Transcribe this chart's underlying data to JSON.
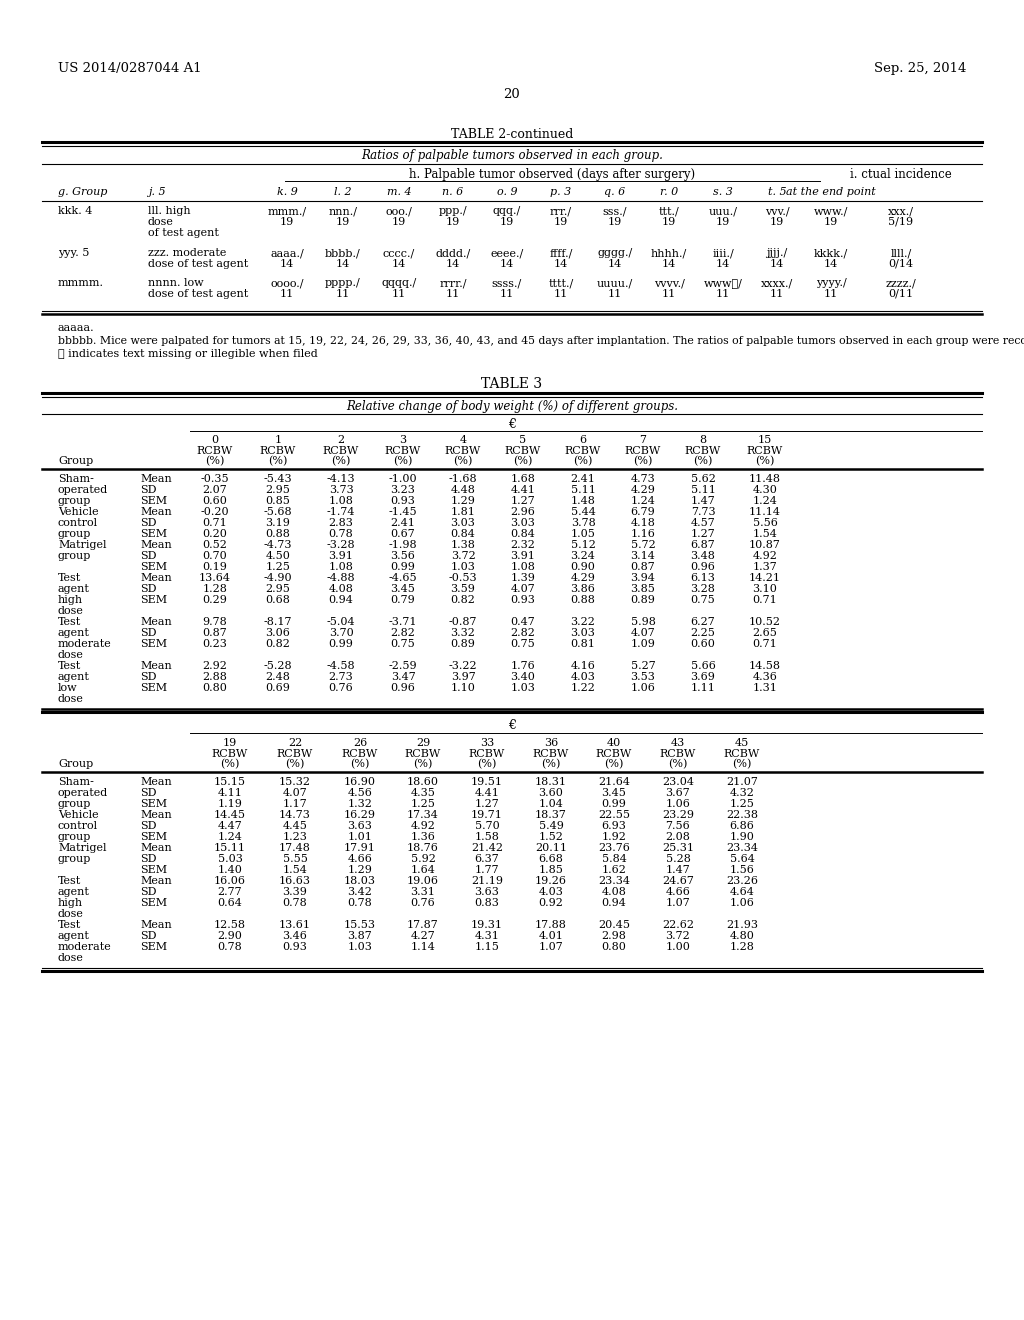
{
  "header_left": "US 2014/0287044 A1",
  "header_right": "Sep. 25, 2014",
  "page_number": "20",
  "table2_title": "TABLE 2-continued",
  "table2_subtitle": "Ratios of palpable tumors observed in each group.",
  "table2_col_header_h": "h. Palpable tumor observed (days after surgery)",
  "table2_col_header_i": "i. ctual incidence",
  "table2_subheaders": [
    "g. Group",
    "j. 5",
    "k. 9",
    "l. 2",
    "m. 4",
    "n. 6",
    "o. 9",
    "p. 3",
    "q. 6",
    "r. 0",
    "s. 3",
    "t. 5",
    "at the end point"
  ],
  "table2_rows": [
    [
      "kkk. 4",
      "lll. high\ndose\nof test agent",
      "mmm./\n19",
      "nnn./\n19",
      "ooo./\n19",
      "ppp./\n19",
      "qqq./\n19",
      "rrr./\n19",
      "sss./\n19",
      "ttt./\n19",
      "uuu./\n19",
      "vvv./\n19",
      "www./\n19",
      "xxx./\n5/19"
    ],
    [
      "yyy. 5",
      "zzz. moderate\ndose of test agent",
      "aaaa./\n14",
      "bbbb./\n14",
      "cccc./\n14",
      "dddd./\n14",
      "eeee./\n14",
      "ffff./\n14",
      "gggg./\n14",
      "hhhh./\n14",
      "iiii./\n14",
      "jjjj./\n14",
      "kkkk./\n14",
      "llll./\n0/14"
    ],
    [
      "mmmm.",
      "nnnn. low\ndose of test agent",
      "oooo./\n11",
      "pppp./\n11",
      "qqqq./\n11",
      "rrrr./\n11",
      "ssss./\n11",
      "tttt./\n11",
      "uuuu./\n11",
      "vvvv./\n11",
      "wwwⓘ/\n11",
      "xxxx./\n11",
      "yyyy./\n11",
      "zzzz./\n0/11"
    ]
  ],
  "footnote1": "aaaaa.",
  "footnote2": "bbbbb. Mice were palpated for tumors at 15, 19, 22, 24, 26, 29, 33, 36, 40, 43, and 45 days after implantation. The ratios of palpable tumors observed in each group were recorded.",
  "footnote3": "ⓘ indicates text missing or illegible when filed",
  "table3_title": "TABLE 3",
  "table3_subtitle": "Relative change of body weight (%) of different groups.",
  "table3_section1_label": "€",
  "table3_cols1": [
    "0",
    "1",
    "2",
    "3",
    "4",
    "5",
    "6",
    "7",
    "8",
    "15"
  ],
  "table3_group_col": "Group",
  "table3_rows1": [
    [
      "Sham-\noperated\ngroup",
      "Mean",
      "-0.35",
      "-5.43",
      "-4.13",
      "-1.00",
      "-1.68",
      "1.68",
      "2.41",
      "4.73",
      "5.62",
      "11.48"
    ],
    [
      "",
      "SD",
      "2.07",
      "2.95",
      "3.73",
      "3.23",
      "4.48",
      "4.41",
      "5.11",
      "4.29",
      "5.11",
      "4.30"
    ],
    [
      "",
      "SEM",
      "0.60",
      "0.85",
      "1.08",
      "0.93",
      "1.29",
      "1.27",
      "1.48",
      "1.24",
      "1.47",
      "1.24"
    ],
    [
      "Vehicle\ncontrol\ngroup",
      "Mean",
      "-0.20",
      "-5.68",
      "-1.74",
      "-1.45",
      "1.81",
      "2.96",
      "5.44",
      "6.79",
      "7.73",
      "11.14"
    ],
    [
      "",
      "SD",
      "0.71",
      "3.19",
      "2.83",
      "2.41",
      "3.03",
      "3.03",
      "3.78",
      "4.18",
      "4.57",
      "5.56"
    ],
    [
      "",
      "SEM",
      "0.20",
      "0.88",
      "0.78",
      "0.67",
      "0.84",
      "0.84",
      "1.05",
      "1.16",
      "1.27",
      "1.54"
    ],
    [
      "Matrigel\ngroup",
      "Mean",
      "0.52",
      "-4.73",
      "-3.28",
      "-1.98",
      "1.38",
      "2.32",
      "5.12",
      "5.72",
      "6.87",
      "10.87"
    ],
    [
      "",
      "SD",
      "0.70",
      "4.50",
      "3.91",
      "3.56",
      "3.72",
      "3.91",
      "3.24",
      "3.14",
      "3.48",
      "4.92"
    ],
    [
      "",
      "SEM",
      "0.19",
      "1.25",
      "1.08",
      "0.99",
      "1.03",
      "1.08",
      "0.90",
      "0.87",
      "0.96",
      "1.37"
    ],
    [
      "Test\nagent\nhigh\ndose",
      "Mean",
      "13.64",
      "-4.90",
      "-4.88",
      "-4.65",
      "-0.53",
      "1.39",
      "4.29",
      "3.94",
      "6.13",
      "14.21"
    ],
    [
      "",
      "SD",
      "1.28",
      "2.95",
      "4.08",
      "3.45",
      "3.59",
      "4.07",
      "3.86",
      "3.85",
      "3.28",
      "3.10"
    ],
    [
      "",
      "SEM",
      "0.29",
      "0.68",
      "0.94",
      "0.79",
      "0.82",
      "0.93",
      "0.88",
      "0.89",
      "0.75",
      "0.71"
    ],
    [
      "Test\nagent\nmoderate\ndose",
      "Mean",
      "9.78",
      "-8.17",
      "-5.04",
      "-3.71",
      "-0.87",
      "0.47",
      "3.22",
      "5.98",
      "6.27",
      "10.52"
    ],
    [
      "",
      "SD",
      "0.87",
      "3.06",
      "3.70",
      "2.82",
      "3.32",
      "2.82",
      "3.03",
      "4.07",
      "2.25",
      "2.65"
    ],
    [
      "",
      "SEM",
      "0.23",
      "0.82",
      "0.99",
      "0.75",
      "0.89",
      "0.75",
      "0.81",
      "1.09",
      "0.60",
      "0.71"
    ],
    [
      "Test\nagent\nlow\ndose",
      "Mean",
      "2.92",
      "-5.28",
      "-4.58",
      "-2.59",
      "-3.22",
      "1.76",
      "4.16",
      "5.27",
      "5.66",
      "14.58"
    ],
    [
      "",
      "SD",
      "2.88",
      "2.48",
      "2.73",
      "3.47",
      "3.97",
      "3.40",
      "4.03",
      "3.53",
      "3.69",
      "4.36"
    ],
    [
      "",
      "SEM",
      "0.80",
      "0.69",
      "0.76",
      "0.96",
      "1.10",
      "1.03",
      "1.22",
      "1.06",
      "1.11",
      "1.31"
    ]
  ],
  "table3_section2_label": "€",
  "table3_cols2": [
    "19",
    "22",
    "26",
    "29",
    "33",
    "36",
    "40",
    "43",
    "45"
  ],
  "table3_rows2": [
    [
      "Sham-\noperated\ngroup",
      "Mean",
      "15.15",
      "15.32",
      "16.90",
      "18.60",
      "19.51",
      "18.31",
      "21.64",
      "23.04",
      "21.07"
    ],
    [
      "",
      "SD",
      "4.11",
      "4.07",
      "4.56",
      "4.35",
      "4.41",
      "3.60",
      "3.45",
      "3.67",
      "4.32"
    ],
    [
      "",
      "SEM",
      "1.19",
      "1.17",
      "1.32",
      "1.25",
      "1.27",
      "1.04",
      "0.99",
      "1.06",
      "1.25"
    ],
    [
      "Vehicle\ncontrol\ngroup",
      "Mean",
      "14.45",
      "14.73",
      "16.29",
      "17.34",
      "19.71",
      "18.37",
      "22.55",
      "23.29",
      "22.38"
    ],
    [
      "",
      "SD",
      "4.47",
      "4.45",
      "3.63",
      "4.92",
      "5.70",
      "5.49",
      "6.93",
      "7.56",
      "6.86"
    ],
    [
      "",
      "SEM",
      "1.24",
      "1.23",
      "1.01",
      "1.36",
      "1.58",
      "1.52",
      "1.92",
      "2.08",
      "1.90"
    ],
    [
      "Matrigel\ngroup",
      "Mean",
      "15.11",
      "17.48",
      "17.91",
      "18.76",
      "21.42",
      "20.11",
      "23.76",
      "25.31",
      "23.34"
    ],
    [
      "",
      "SD",
      "5.03",
      "5.55",
      "4.66",
      "5.92",
      "6.37",
      "6.68",
      "5.84",
      "5.28",
      "5.64"
    ],
    [
      "",
      "SEM",
      "1.40",
      "1.54",
      "1.29",
      "1.64",
      "1.77",
      "1.85",
      "1.62",
      "1.47",
      "1.56"
    ],
    [
      "Test\nagent\nhigh\ndose",
      "Mean",
      "16.06",
      "16.63",
      "18.03",
      "19.06",
      "21.19",
      "19.26",
      "23.34",
      "24.67",
      "23.26"
    ],
    [
      "",
      "SD",
      "2.77",
      "3.39",
      "3.42",
      "3.31",
      "3.63",
      "4.03",
      "4.08",
      "4.66",
      "4.64"
    ],
    [
      "",
      "SEM",
      "0.64",
      "0.78",
      "0.78",
      "0.76",
      "0.83",
      "0.92",
      "0.94",
      "1.07",
      "1.06"
    ],
    [
      "Test\nagent\nmoderate\ndose",
      "Mean",
      "12.58",
      "13.61",
      "15.53",
      "17.87",
      "19.31",
      "17.88",
      "20.45",
      "22.62",
      "21.93"
    ],
    [
      "",
      "SD",
      "2.90",
      "3.46",
      "3.87",
      "4.27",
      "4.31",
      "4.01",
      "2.98",
      "3.72",
      "4.80"
    ],
    [
      "",
      "SEM",
      "0.78",
      "0.93",
      "1.03",
      "1.14",
      "1.15",
      "1.07",
      "0.80",
      "1.00",
      "1.28"
    ]
  ],
  "bg_color": "#ffffff",
  "text_color": "#000000"
}
